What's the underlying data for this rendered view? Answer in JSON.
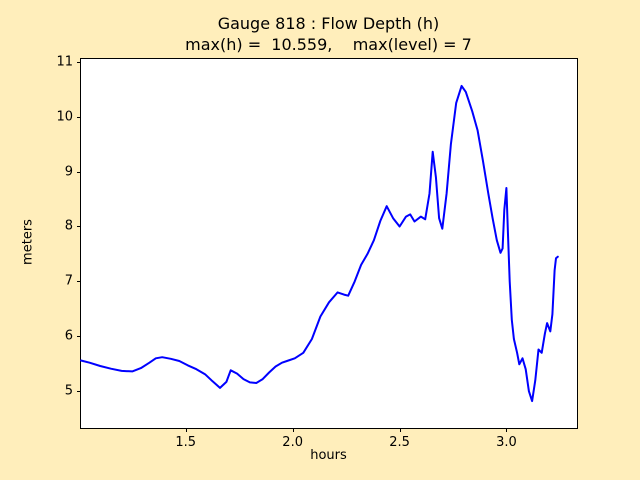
{
  "figure": {
    "background_color": "#ffeebb",
    "plot_background_color": "#ffffff",
    "frame_color": "#000000",
    "title": "Gauge 818 : Flow Depth (h)",
    "subtitle": "max(h) =  10.559,    max(level) = 7"
  },
  "chart_data": {
    "type": "line",
    "title": "Gauge 818 : Flow Depth (h)",
    "subtitle": "max(h) =  10.559,    max(level) = 7",
    "xlabel": "hours",
    "ylabel": "meters",
    "xlim": [
      1.01,
      3.33
    ],
    "ylim": [
      4.33,
      11.05
    ],
    "xticks": [
      1.5,
      2.0,
      2.5,
      3.0
    ],
    "xtick_labels": [
      "1.5",
      "2.0",
      "2.5",
      "3.0"
    ],
    "yticks": [
      5,
      6,
      7,
      8,
      9,
      10,
      11
    ],
    "ytick_labels": [
      "5",
      "6",
      "7",
      "8",
      "9",
      "10",
      "11"
    ],
    "grid": false,
    "legend_position": "none",
    "line_color": "#0000ff",
    "line_width": 2,
    "max_h": 10.559,
    "max_level": 7,
    "series": [
      {
        "name": "flow-depth-h",
        "points": [
          [
            1.01,
            5.56
          ],
          [
            1.05,
            5.52
          ],
          [
            1.1,
            5.46
          ],
          [
            1.15,
            5.41
          ],
          [
            1.2,
            5.37
          ],
          [
            1.25,
            5.36
          ],
          [
            1.29,
            5.42
          ],
          [
            1.33,
            5.52
          ],
          [
            1.36,
            5.6
          ],
          [
            1.39,
            5.62
          ],
          [
            1.43,
            5.59
          ],
          [
            1.47,
            5.55
          ],
          [
            1.51,
            5.47
          ],
          [
            1.55,
            5.4
          ],
          [
            1.59,
            5.31
          ],
          [
            1.62,
            5.2
          ],
          [
            1.66,
            5.06
          ],
          [
            1.69,
            5.17
          ],
          [
            1.71,
            5.38
          ],
          [
            1.74,
            5.32
          ],
          [
            1.77,
            5.22
          ],
          [
            1.8,
            5.16
          ],
          [
            1.83,
            5.15
          ],
          [
            1.86,
            5.22
          ],
          [
            1.89,
            5.34
          ],
          [
            1.92,
            5.45
          ],
          [
            1.95,
            5.52
          ],
          [
            1.98,
            5.56
          ],
          [
            2.01,
            5.6
          ],
          [
            2.05,
            5.7
          ],
          [
            2.09,
            5.95
          ],
          [
            2.13,
            6.36
          ],
          [
            2.17,
            6.62
          ],
          [
            2.21,
            6.8
          ],
          [
            2.24,
            6.76
          ],
          [
            2.26,
            6.74
          ],
          [
            2.29,
            7.0
          ],
          [
            2.32,
            7.3
          ],
          [
            2.35,
            7.5
          ],
          [
            2.38,
            7.75
          ],
          [
            2.41,
            8.1
          ],
          [
            2.44,
            8.37
          ],
          [
            2.47,
            8.15
          ],
          [
            2.5,
            8.0
          ],
          [
            2.53,
            8.18
          ],
          [
            2.55,
            8.22
          ],
          [
            2.57,
            8.09
          ],
          [
            2.6,
            8.18
          ],
          [
            2.62,
            8.13
          ],
          [
            2.64,
            8.6
          ],
          [
            2.655,
            9.36
          ],
          [
            2.67,
            8.9
          ],
          [
            2.685,
            8.15
          ],
          [
            2.7,
            7.96
          ],
          [
            2.72,
            8.6
          ],
          [
            2.74,
            9.5
          ],
          [
            2.765,
            10.25
          ],
          [
            2.79,
            10.56
          ],
          [
            2.81,
            10.45
          ],
          [
            2.84,
            10.1
          ],
          [
            2.865,
            9.75
          ],
          [
            2.89,
            9.2
          ],
          [
            2.915,
            8.6
          ],
          [
            2.935,
            8.15
          ],
          [
            2.955,
            7.75
          ],
          [
            2.972,
            7.52
          ],
          [
            2.982,
            7.6
          ],
          [
            2.99,
            8.3
          ],
          [
            3.0,
            8.7
          ],
          [
            3.007,
            7.9
          ],
          [
            3.015,
            7.0
          ],
          [
            3.025,
            6.3
          ],
          [
            3.035,
            5.95
          ],
          [
            3.05,
            5.7
          ],
          [
            3.06,
            5.49
          ],
          [
            3.075,
            5.6
          ],
          [
            3.09,
            5.4
          ],
          [
            3.105,
            5.0
          ],
          [
            3.12,
            4.82
          ],
          [
            3.135,
            5.2
          ],
          [
            3.15,
            5.76
          ],
          [
            3.165,
            5.7
          ],
          [
            3.18,
            6.05
          ],
          [
            3.19,
            6.24
          ],
          [
            3.205,
            6.09
          ],
          [
            3.215,
            6.4
          ],
          [
            3.225,
            7.2
          ],
          [
            3.232,
            7.42
          ],
          [
            3.24,
            7.45
          ]
        ]
      }
    ]
  }
}
